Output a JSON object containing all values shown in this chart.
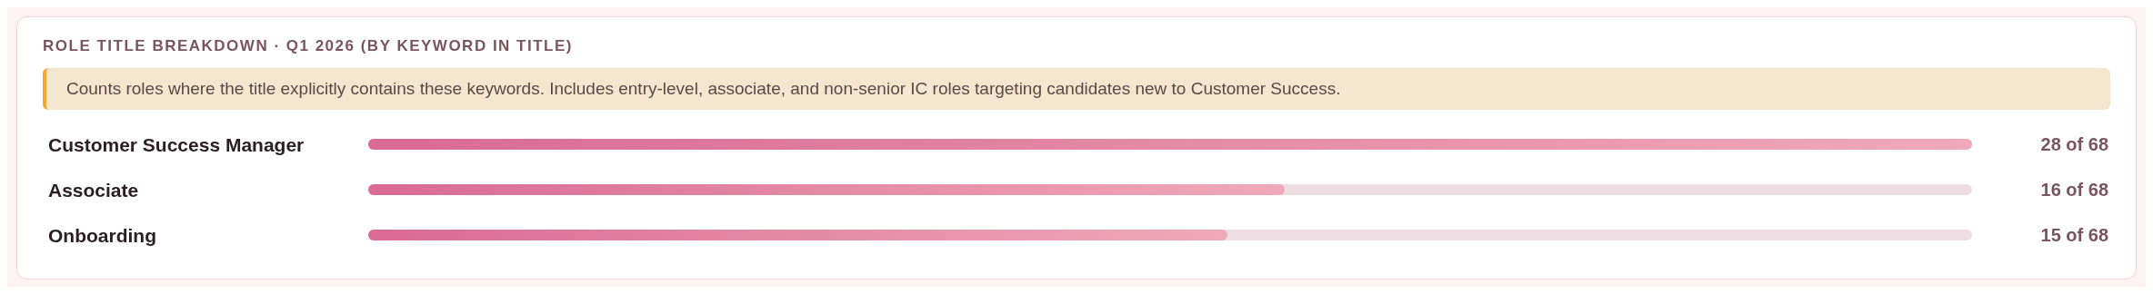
{
  "chart_data": {
    "type": "bar",
    "orientation": "horizontal",
    "title": "ROLE TITLE BREAKDOWN · Q1 2026 (BY KEYWORD IN TITLE)",
    "annotations": [
      "Counts roles where the title explicitly contains these keywords. Includes entry-level, associate, and non-senior IC roles targeting candidates new to Customer Success."
    ],
    "categories": [
      "Customer Success Manager",
      "Associate",
      "Onboarding"
    ],
    "values": [
      28,
      16,
      15
    ],
    "value_labels": [
      "28 of 68",
      "16 of 68",
      "15 of 68"
    ],
    "color": "#d96a93",
    "grid": false
  }
}
